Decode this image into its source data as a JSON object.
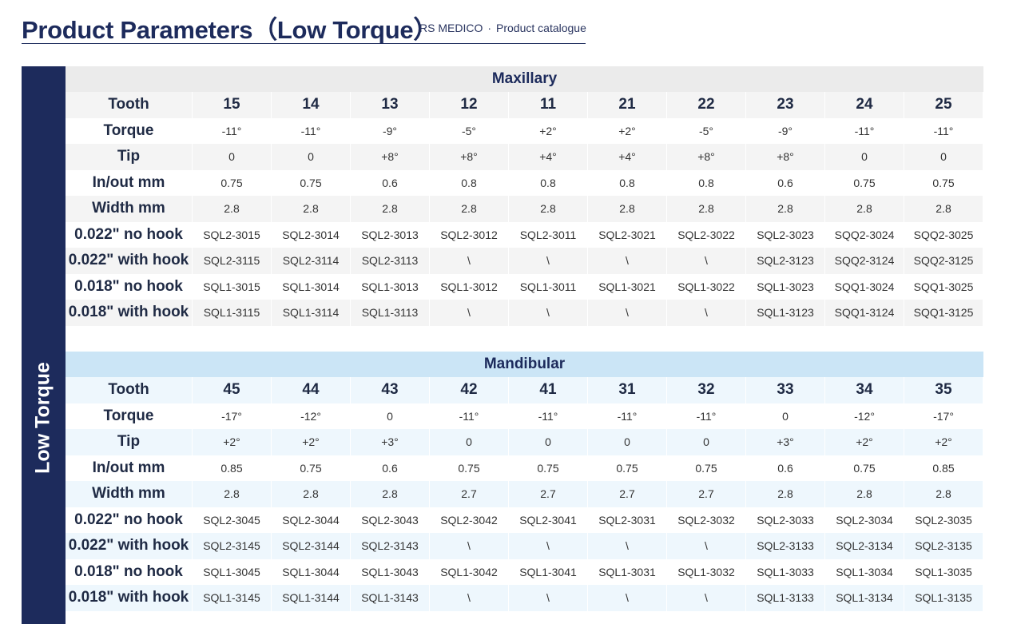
{
  "header": {
    "title": "Product Parameters（Low Torque）",
    "brand": "RS MEDICO",
    "separator": "·",
    "catalogue": "Product catalogue"
  },
  "side_label": "Low Torque",
  "colors": {
    "navy": "#1d2b5c",
    "max_band": "#ebebeb",
    "man_band": "#cbe5f6"
  },
  "maxillary": {
    "title": "Maxillary",
    "rows": [
      {
        "label": "Tooth",
        "values": [
          "15",
          "14",
          "13",
          "12",
          "11",
          "21",
          "22",
          "23",
          "24",
          "25"
        ]
      },
      {
        "label": "Torque",
        "values": [
          "-11°",
          "-11°",
          "-9°",
          "-5°",
          "+2°",
          "+2°",
          "-5°",
          "-9°",
          "-11°",
          "-11°"
        ]
      },
      {
        "label": "Tip",
        "values": [
          "0",
          "0",
          "+8°",
          "+8°",
          "+4°",
          "+4°",
          "+8°",
          "+8°",
          "0",
          "0"
        ]
      },
      {
        "label": "In/out mm",
        "values": [
          "0.75",
          "0.75",
          "0.6",
          "0.8",
          "0.8",
          "0.8",
          "0.8",
          "0.6",
          "0.75",
          "0.75"
        ]
      },
      {
        "label": "Width mm",
        "values": [
          "2.8",
          "2.8",
          "2.8",
          "2.8",
          "2.8",
          "2.8",
          "2.8",
          "2.8",
          "2.8",
          "2.8"
        ]
      },
      {
        "label": "0.022\" no hook",
        "values": [
          "SQL2-3015",
          "SQL2-3014",
          "SQL2-3013",
          "SQL2-3012",
          "SQL2-3011",
          "SQL2-3021",
          "SQL2-3022",
          "SQL2-3023",
          "SQQ2-3024",
          "SQQ2-3025"
        ]
      },
      {
        "label": "0.022\" with hook",
        "values": [
          "SQL2-3115",
          "SQL2-3114",
          "SQL2-3113",
          "\\",
          "\\",
          "\\",
          "\\",
          "SQL2-3123",
          "SQQ2-3124",
          "SQQ2-3125"
        ]
      },
      {
        "label": "0.018\" no hook",
        "values": [
          "SQL1-3015",
          "SQL1-3014",
          "SQL1-3013",
          "SQL1-3012",
          "SQL1-3011",
          "SQL1-3021",
          "SQL1-3022",
          "SQL1-3023",
          "SQQ1-3024",
          "SQQ1-3025"
        ]
      },
      {
        "label": "0.018\" with hook",
        "values": [
          "SQL1-3115",
          "SQL1-3114",
          "SQL1-3113",
          "\\",
          "\\",
          "\\",
          "\\",
          "SQL1-3123",
          "SQQ1-3124",
          "SQQ1-3125"
        ]
      }
    ]
  },
  "mandibular": {
    "title": "Mandibular",
    "rows": [
      {
        "label": "Tooth",
        "values": [
          "45",
          "44",
          "43",
          "42",
          "41",
          "31",
          "32",
          "33",
          "34",
          "35"
        ]
      },
      {
        "label": "Torque",
        "values": [
          "-17°",
          "-12°",
          "0",
          "-11°",
          "-11°",
          "-11°",
          "-11°",
          "0",
          "-12°",
          "-17°"
        ]
      },
      {
        "label": "Tip",
        "values": [
          "+2°",
          "+2°",
          "+3°",
          "0",
          "0",
          "0",
          "0",
          "+3°",
          "+2°",
          "+2°"
        ]
      },
      {
        "label": "In/out mm",
        "values": [
          "0.85",
          "0.75",
          "0.6",
          "0.75",
          "0.75",
          "0.75",
          "0.75",
          "0.6",
          "0.75",
          "0.85"
        ]
      },
      {
        "label": "Width mm",
        "values": [
          "2.8",
          "2.8",
          "2.8",
          "2.7",
          "2.7",
          "2.7",
          "2.7",
          "2.8",
          "2.8",
          "2.8"
        ]
      },
      {
        "label": "0.022\" no hook",
        "values": [
          "SQL2-3045",
          "SQL2-3044",
          "SQL2-3043",
          "SQL2-3042",
          "SQL2-3041",
          "SQL2-3031",
          "SQL2-3032",
          "SQL2-3033",
          "SQL2-3034",
          "SQL2-3035"
        ]
      },
      {
        "label": "0.022\" with hook",
        "values": [
          "SQL2-3145",
          "SQL2-3144",
          "SQL2-3143",
          "\\",
          "\\",
          "\\",
          "\\",
          "SQL2-3133",
          "SQL2-3134",
          "SQL2-3135"
        ]
      },
      {
        "label": "0.018\" no hook",
        "values": [
          "SQL1-3045",
          "SQL1-3044",
          "SQL1-3043",
          "SQL1-3042",
          "SQL1-3041",
          "SQL1-3031",
          "SQL1-3032",
          "SQL1-3033",
          "SQL1-3034",
          "SQL1-3035"
        ]
      },
      {
        "label": "0.018\" with hook",
        "values": [
          "SQL1-3145",
          "SQL1-3144",
          "SQL1-3143",
          "\\",
          "\\",
          "\\",
          "\\",
          "SQL1-3133",
          "SQL1-3134",
          "SQL1-3135"
        ]
      }
    ]
  }
}
